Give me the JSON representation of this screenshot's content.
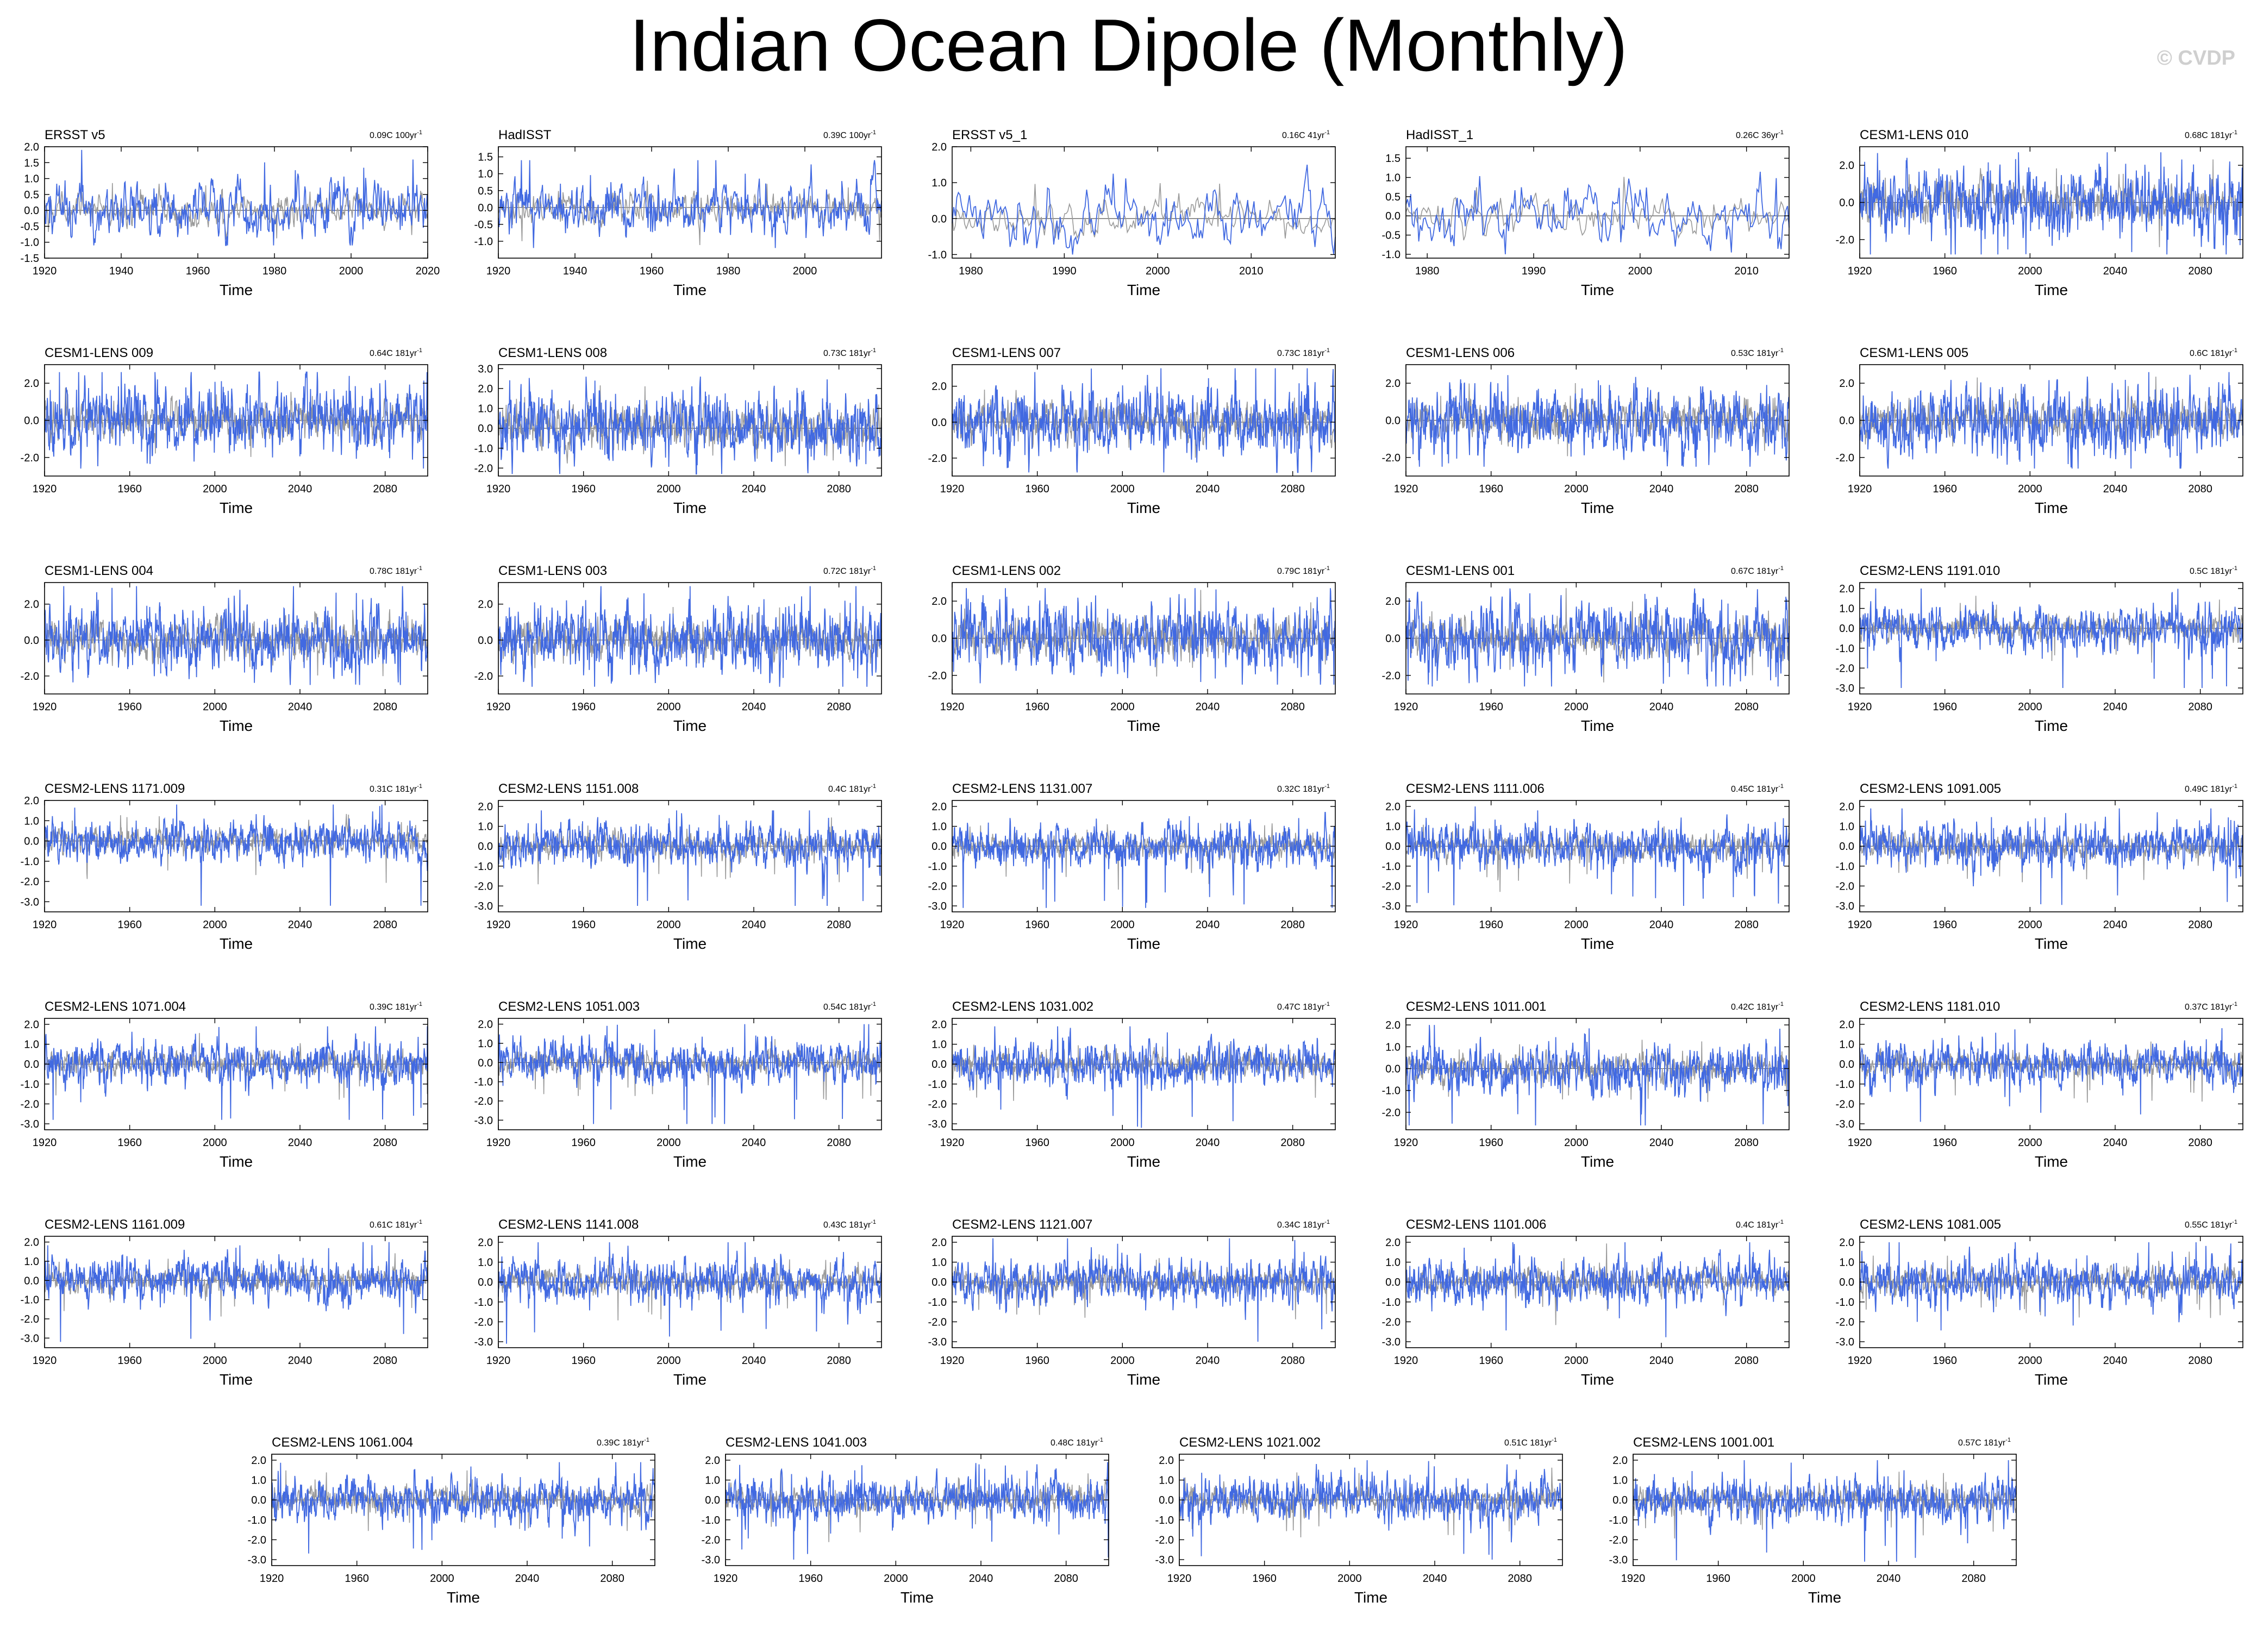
{
  "title": "Indian Ocean Dipole (Monthly)",
  "credit": "© CVDP",
  "colors": {
    "model_line": "#4169e1",
    "obs_line": "#9a9a9a",
    "frame": "#000000"
  },
  "chart_data": [
    {
      "type": "line",
      "panel_title": "ERSST v5",
      "trend": "0.09C 100yr",
      "xlabel": "Time",
      "xlim": [
        1920,
        2020
      ],
      "xticks": [
        "1920",
        "1940",
        "1960",
        "1980",
        "2000",
        "2020"
      ],
      "ylim": [
        -1.5,
        2.0
      ],
      "yticks": [
        "-1.5",
        "-1.0",
        "-0.5",
        "0.0",
        "0.5",
        "1.0",
        "1.5",
        "2.0"
      ],
      "series": [
        {
          "amplitude": 0.45,
          "min": -1.1,
          "max": 1.9
        }
      ]
    },
    {
      "type": "line",
      "panel_title": "HadISST",
      "trend": "0.39C 100yr",
      "xlabel": "Time",
      "xlim": [
        1920,
        2020
      ],
      "xticks": [
        "1920",
        "1940",
        "1960",
        "1980",
        "2000"
      ],
      "ylim": [
        -1.5,
        1.8
      ],
      "yticks": [
        "-1.0",
        "-0.5",
        "0.0",
        "0.5",
        "1.0",
        "1.5"
      ],
      "series": [
        {
          "amplitude": 0.4,
          "min": -1.2,
          "max": 1.4
        }
      ]
    },
    {
      "type": "line",
      "panel_title": "ERSST v5_1",
      "trend": "0.16C 41yr",
      "xlabel": "Time",
      "xlim": [
        1978,
        2019
      ],
      "xticks": [
        "1980",
        "1990",
        "2000",
        "2010"
      ],
      "ylim": [
        -1.1,
        2.0
      ],
      "yticks": [
        "-1.0",
        "0.0",
        "1.0",
        "2.0"
      ],
      "series": [
        {
          "amplitude": 0.45,
          "min": -1.0,
          "max": 1.5
        }
      ]
    },
    {
      "type": "line",
      "panel_title": "HadISST_1",
      "trend": "0.26C 36yr",
      "xlabel": "Time",
      "xlim": [
        1978,
        2014
      ],
      "xticks": [
        "1980",
        "1990",
        "2000",
        "2010"
      ],
      "ylim": [
        -1.1,
        1.8
      ],
      "yticks": [
        "-1.0",
        "-0.5",
        "0.0",
        "0.5",
        "1.0",
        "1.5"
      ],
      "series": [
        {
          "amplitude": 0.4,
          "min": -1.0,
          "max": 1.5
        }
      ]
    },
    {
      "type": "line",
      "panel_title": "CESM1-LENS 010",
      "trend": "0.68C 181yr",
      "xlabel": "Time",
      "xlim": [
        1920,
        2100
      ],
      "xticks": [
        "1920",
        "1960",
        "2000",
        "2040",
        "2080"
      ],
      "ylim": [
        -3.0,
        3.0
      ],
      "yticks": [
        "-2.0",
        "0.0",
        "2.0"
      ],
      "series": [
        {
          "amplitude": 0.9,
          "min": -2.8,
          "max": 2.7
        }
      ]
    },
    {
      "type": "line",
      "panel_title": "CESM1-LENS 009",
      "trend": "0.64C 181yr",
      "xlabel": "Time",
      "xlim": [
        1920,
        2100
      ],
      "xticks": [
        "1920",
        "1960",
        "2000",
        "2040",
        "2080"
      ],
      "ylim": [
        -3.0,
        3.0
      ],
      "yticks": [
        "-2.0",
        "0.0",
        "2.0"
      ],
      "series": [
        {
          "amplitude": 0.9,
          "min": -2.6,
          "max": 2.6
        }
      ]
    },
    {
      "type": "line",
      "panel_title": "CESM1-LENS 008",
      "trend": "0.73C 181yr",
      "xlabel": "Time",
      "xlim": [
        1920,
        2100
      ],
      "xticks": [
        "1920",
        "1960",
        "2000",
        "2040",
        "2080"
      ],
      "ylim": [
        -2.4,
        3.2
      ],
      "yticks": [
        "-2.0",
        "-1.0",
        "0.0",
        "1.0",
        "2.0",
        "3.0"
      ],
      "series": [
        {
          "amplitude": 0.9,
          "min": -2.3,
          "max": 2.6
        }
      ]
    },
    {
      "type": "line",
      "panel_title": "CESM1-LENS 007",
      "trend": "0.73C 181yr",
      "xlabel": "Time",
      "xlim": [
        1920,
        2100
      ],
      "xticks": [
        "1920",
        "1960",
        "2000",
        "2040",
        "2080"
      ],
      "ylim": [
        -3.0,
        3.2
      ],
      "yticks": [
        "-2.0",
        "0.0",
        "2.0"
      ],
      "series": [
        {
          "amplitude": 0.9,
          "min": -2.8,
          "max": 3.0
        }
      ]
    },
    {
      "type": "line",
      "panel_title": "CESM1-LENS 006",
      "trend": "0.53C 181yr",
      "xlabel": "Time",
      "xlim": [
        1920,
        2100
      ],
      "xticks": [
        "1920",
        "1960",
        "2000",
        "2040",
        "2080"
      ],
      "ylim": [
        -3.0,
        3.0
      ],
      "yticks": [
        "-2.0",
        "0.0",
        "2.0"
      ],
      "series": [
        {
          "amplitude": 0.9,
          "min": -2.5,
          "max": 2.6
        }
      ]
    },
    {
      "type": "line",
      "panel_title": "CESM1-LENS 005",
      "trend": "0.6C 181yr",
      "xlabel": "Time",
      "xlim": [
        1920,
        2100
      ],
      "xticks": [
        "1920",
        "1960",
        "2000",
        "2040",
        "2080"
      ],
      "ylim": [
        -3.0,
        3.0
      ],
      "yticks": [
        "-2.0",
        "0.0",
        "2.0"
      ],
      "series": [
        {
          "amplitude": 0.9,
          "min": -2.6,
          "max": 2.6
        }
      ]
    },
    {
      "type": "line",
      "panel_title": "CESM1-LENS 004",
      "trend": "0.78C 181yr",
      "xlabel": "Time",
      "xlim": [
        1920,
        2100
      ],
      "xticks": [
        "1920",
        "1960",
        "2000",
        "2040",
        "2080"
      ],
      "ylim": [
        -3.0,
        3.2
      ],
      "yticks": [
        "-2.0",
        "0.0",
        "2.0"
      ],
      "series": [
        {
          "amplitude": 0.9,
          "min": -2.5,
          "max": 3.0
        }
      ]
    },
    {
      "type": "line",
      "panel_title": "CESM1-LENS 003",
      "trend": "0.72C 181yr",
      "xlabel": "Time",
      "xlim": [
        1920,
        2100
      ],
      "xticks": [
        "1920",
        "1960",
        "2000",
        "2040",
        "2080"
      ],
      "ylim": [
        -3.0,
        3.2
      ],
      "yticks": [
        "-2.0",
        "0.0",
        "2.0"
      ],
      "series": [
        {
          "amplitude": 0.9,
          "min": -2.6,
          "max": 3.0
        }
      ]
    },
    {
      "type": "line",
      "panel_title": "CESM1-LENS 002",
      "trend": "0.79C 181yr",
      "xlabel": "Time",
      "xlim": [
        1920,
        2100
      ],
      "xticks": [
        "1920",
        "1960",
        "2000",
        "2040",
        "2080"
      ],
      "ylim": [
        -3.0,
        3.0
      ],
      "yticks": [
        "-2.0",
        "0.0",
        "2.0"
      ],
      "series": [
        {
          "amplitude": 0.9,
          "min": -2.5,
          "max": 2.7
        }
      ]
    },
    {
      "type": "line",
      "panel_title": "CESM1-LENS 001",
      "trend": "0.67C 181yr",
      "xlabel": "Time",
      "xlim": [
        1920,
        2100
      ],
      "xticks": [
        "1920",
        "1960",
        "2000",
        "2040",
        "2080"
      ],
      "ylim": [
        -3.0,
        3.0
      ],
      "yticks": [
        "-2.0",
        "0.0",
        "2.0"
      ],
      "series": [
        {
          "amplitude": 0.9,
          "min": -2.6,
          "max": 2.7
        }
      ]
    },
    {
      "type": "line",
      "panel_title": "CESM2-LENS 1191.010",
      "trend": "0.5C 181yr",
      "xlabel": "Time",
      "xlim": [
        1920,
        2100
      ],
      "xticks": [
        "1920",
        "1960",
        "2000",
        "2040",
        "2080"
      ],
      "ylim": [
        -3.3,
        2.3
      ],
      "yticks": [
        "-3.0",
        "-2.0",
        "-1.0",
        "0.0",
        "1.0",
        "2.0"
      ],
      "series": [
        {
          "amplitude": 0.55,
          "min": -3.0,
          "max": 2.0
        }
      ]
    },
    {
      "type": "line",
      "panel_title": "CESM2-LENS 1171.009",
      "trend": "0.31C 181yr",
      "xlabel": "Time",
      "xlim": [
        1920,
        2100
      ],
      "xticks": [
        "1920",
        "1960",
        "2000",
        "2040",
        "2080"
      ],
      "ylim": [
        -3.5,
        2.0
      ],
      "yticks": [
        "-3.0",
        "-2.0",
        "-1.0",
        "0.0",
        "1.0",
        "2.0"
      ],
      "series": [
        {
          "amplitude": 0.5,
          "min": -3.2,
          "max": 1.8
        }
      ]
    },
    {
      "type": "line",
      "panel_title": "CESM2-LENS 1151.008",
      "trend": "0.4C 181yr",
      "xlabel": "Time",
      "xlim": [
        1920,
        2100
      ],
      "xticks": [
        "1920",
        "1960",
        "2000",
        "2040",
        "2080"
      ],
      "ylim": [
        -3.3,
        2.3
      ],
      "yticks": [
        "-3.0",
        "-2.0",
        "-1.0",
        "0.0",
        "1.0",
        "2.0"
      ],
      "series": [
        {
          "amplitude": 0.55,
          "min": -3.0,
          "max": 1.8
        }
      ]
    },
    {
      "type": "line",
      "panel_title": "CESM2-LENS 1131.007",
      "trend": "0.32C 181yr",
      "xlabel": "Time",
      "xlim": [
        1920,
        2100
      ],
      "xticks": [
        "1920",
        "1960",
        "2000",
        "2040",
        "2080"
      ],
      "ylim": [
        -3.3,
        2.3
      ],
      "yticks": [
        "-3.0",
        "-2.0",
        "-1.0",
        "0.0",
        "1.0",
        "2.0"
      ],
      "series": [
        {
          "amplitude": 0.55,
          "min": -3.1,
          "max": 1.7
        }
      ]
    },
    {
      "type": "line",
      "panel_title": "CESM2-LENS 1111.006",
      "trend": "0.45C 181yr",
      "xlabel": "Time",
      "xlim": [
        1920,
        2100
      ],
      "xticks": [
        "1920",
        "1960",
        "2000",
        "2040",
        "2080"
      ],
      "ylim": [
        -3.3,
        2.3
      ],
      "yticks": [
        "-3.0",
        "-2.0",
        "-1.0",
        "0.0",
        "1.0",
        "2.0"
      ],
      "series": [
        {
          "amplitude": 0.55,
          "min": -3.0,
          "max": 2.0
        }
      ]
    },
    {
      "type": "line",
      "panel_title": "CESM2-LENS 1091.005",
      "trend": "0.49C 181yr",
      "xlabel": "Time",
      "xlim": [
        1920,
        2100
      ],
      "xticks": [
        "1920",
        "1960",
        "2000",
        "2040",
        "2080"
      ],
      "ylim": [
        -3.3,
        2.3
      ],
      "yticks": [
        "-3.0",
        "-2.0",
        "-1.0",
        "0.0",
        "1.0",
        "2.0"
      ],
      "series": [
        {
          "amplitude": 0.55,
          "min": -3.0,
          "max": 1.9
        }
      ]
    },
    {
      "type": "line",
      "panel_title": "CESM2-LENS 1071.004",
      "trend": "0.39C 181yr",
      "xlabel": "Time",
      "xlim": [
        1920,
        2100
      ],
      "xticks": [
        "1920",
        "1960",
        "2000",
        "2040",
        "2080"
      ],
      "ylim": [
        -3.3,
        2.3
      ],
      "yticks": [
        "-3.0",
        "-2.0",
        "-1.0",
        "0.0",
        "1.0",
        "2.0"
      ],
      "series": [
        {
          "amplitude": 0.55,
          "min": -2.8,
          "max": 1.9
        }
      ]
    },
    {
      "type": "line",
      "panel_title": "CESM2-LENS 1051.003",
      "trend": "0.54C 181yr",
      "xlabel": "Time",
      "xlim": [
        1920,
        2100
      ],
      "xticks": [
        "1920",
        "1960",
        "2000",
        "2040",
        "2080"
      ],
      "ylim": [
        -3.5,
        2.3
      ],
      "yticks": [
        "-3.0",
        "-2.0",
        "-1.0",
        "0.0",
        "1.0",
        "2.0"
      ],
      "series": [
        {
          "amplitude": 0.55,
          "min": -3.2,
          "max": 2.0
        }
      ]
    },
    {
      "type": "line",
      "panel_title": "CESM2-LENS 1031.002",
      "trend": "0.47C 181yr",
      "xlabel": "Time",
      "xlim": [
        1920,
        2100
      ],
      "xticks": [
        "1920",
        "1960",
        "2000",
        "2040",
        "2080"
      ],
      "ylim": [
        -3.3,
        2.3
      ],
      "yticks": [
        "-3.0",
        "-2.0",
        "-1.0",
        "0.0",
        "1.0",
        "2.0"
      ],
      "series": [
        {
          "amplitude": 0.55,
          "min": -3.2,
          "max": 1.9
        }
      ]
    },
    {
      "type": "line",
      "panel_title": "CESM2-LENS 1011.001",
      "trend": "0.42C 181yr",
      "xlabel": "Time",
      "xlim": [
        1920,
        2100
      ],
      "xticks": [
        "1920",
        "1960",
        "2000",
        "2040",
        "2080"
      ],
      "ylim": [
        -2.8,
        2.3
      ],
      "yticks": [
        "-2.0",
        "-1.0",
        "0.0",
        "1.0",
        "2.0"
      ],
      "series": [
        {
          "amplitude": 0.55,
          "min": -2.6,
          "max": 2.0
        }
      ]
    },
    {
      "type": "line",
      "panel_title": "CESM2-LENS 1181.010",
      "trend": "0.37C 181yr",
      "xlabel": "Time",
      "xlim": [
        1920,
        2100
      ],
      "xticks": [
        "1920",
        "1960",
        "2000",
        "2040",
        "2080"
      ],
      "ylim": [
        -3.3,
        2.3
      ],
      "yticks": [
        "-3.0",
        "-2.0",
        "-1.0",
        "0.0",
        "1.0",
        "2.0"
      ],
      "series": [
        {
          "amplitude": 0.55,
          "min": -2.9,
          "max": 2.0
        }
      ]
    },
    {
      "type": "line",
      "panel_title": "CESM2-LENS 1161.009",
      "trend": "0.61C 181yr",
      "xlabel": "Time",
      "xlim": [
        1920,
        2100
      ],
      "xticks": [
        "1920",
        "1960",
        "2000",
        "2040",
        "2080"
      ],
      "ylim": [
        -3.5,
        2.3
      ],
      "yticks": [
        "-3.0",
        "-2.0",
        "-1.0",
        "0.0",
        "1.0",
        "2.0"
      ],
      "series": [
        {
          "amplitude": 0.55,
          "min": -3.2,
          "max": 2.0
        }
      ]
    },
    {
      "type": "line",
      "panel_title": "CESM2-LENS 1141.008",
      "trend": "0.43C 181yr",
      "xlabel": "Time",
      "xlim": [
        1920,
        2100
      ],
      "xticks": [
        "1920",
        "1960",
        "2000",
        "2040",
        "2080"
      ],
      "ylim": [
        -3.3,
        2.3
      ],
      "yticks": [
        "-3.0",
        "-2.0",
        "-1.0",
        "0.0",
        "1.0",
        "2.0"
      ],
      "series": [
        {
          "amplitude": 0.55,
          "min": -3.1,
          "max": 2.0
        }
      ]
    },
    {
      "type": "line",
      "panel_title": "CESM2-LENS 1121.007",
      "trend": "0.34C 181yr",
      "xlabel": "Time",
      "xlim": [
        1920,
        2100
      ],
      "xticks": [
        "1920",
        "1960",
        "2000",
        "2040",
        "2080"
      ],
      "ylim": [
        -3.3,
        2.3
      ],
      "yticks": [
        "-3.0",
        "-2.0",
        "-1.0",
        "0.0",
        "1.0",
        "2.0"
      ],
      "series": [
        {
          "amplitude": 0.55,
          "min": -3.0,
          "max": 2.2
        }
      ]
    },
    {
      "type": "line",
      "panel_title": "CESM2-LENS 1101.006",
      "trend": "0.4C 181yr",
      "xlabel": "Time",
      "xlim": [
        1920,
        2100
      ],
      "xticks": [
        "1920",
        "1960",
        "2000",
        "2040",
        "2080"
      ],
      "ylim": [
        -3.3,
        2.3
      ],
      "yticks": [
        "-3.0",
        "-2.0",
        "-1.0",
        "0.0",
        "1.0",
        "2.0"
      ],
      "series": [
        {
          "amplitude": 0.55,
          "min": -3.1,
          "max": 2.0
        }
      ]
    },
    {
      "type": "line",
      "panel_title": "CESM2-LENS 1081.005",
      "trend": "0.55C 181yr",
      "xlabel": "Time",
      "xlim": [
        1920,
        2100
      ],
      "xticks": [
        "1920",
        "1960",
        "2000",
        "2040",
        "2080"
      ],
      "ylim": [
        -3.3,
        2.3
      ],
      "yticks": [
        "-3.0",
        "-2.0",
        "-1.0",
        "0.0",
        "1.0",
        "2.0"
      ],
      "series": [
        {
          "amplitude": 0.55,
          "min": -2.8,
          "max": 2.0
        }
      ]
    },
    {
      "type": "line",
      "panel_title": "CESM2-LENS 1061.004",
      "trend": "0.39C 181yr",
      "xlabel": "Time",
      "xlim": [
        1920,
        2100
      ],
      "xticks": [
        "1920",
        "1960",
        "2000",
        "2040",
        "2080"
      ],
      "ylim": [
        -3.3,
        2.3
      ],
      "yticks": [
        "-3.0",
        "-2.0",
        "-1.0",
        "0.0",
        "1.0",
        "2.0"
      ],
      "series": [
        {
          "amplitude": 0.55,
          "min": -3.0,
          "max": 1.9
        }
      ]
    },
    {
      "type": "line",
      "panel_title": "CESM2-LENS 1041.003",
      "trend": "0.48C 181yr",
      "xlabel": "Time",
      "xlim": [
        1920,
        2100
      ],
      "xticks": [
        "1920",
        "1960",
        "2000",
        "2040",
        "2080"
      ],
      "ylim": [
        -3.3,
        2.3
      ],
      "yticks": [
        "-3.0",
        "-2.0",
        "-1.0",
        "0.0",
        "1.0",
        "2.0"
      ],
      "series": [
        {
          "amplitude": 0.55,
          "min": -3.0,
          "max": 1.9
        }
      ]
    },
    {
      "type": "line",
      "panel_title": "CESM2-LENS 1021.002",
      "trend": "0.51C 181yr",
      "xlabel": "Time",
      "xlim": [
        1920,
        2100
      ],
      "xticks": [
        "1920",
        "1960",
        "2000",
        "2040",
        "2080"
      ],
      "ylim": [
        -3.3,
        2.3
      ],
      "yticks": [
        "-3.0",
        "-2.0",
        "-1.0",
        "0.0",
        "1.0",
        "2.0"
      ],
      "series": [
        {
          "amplitude": 0.55,
          "min": -3.0,
          "max": 2.0
        }
      ]
    },
    {
      "type": "line",
      "panel_title": "CESM2-LENS 1001.001",
      "trend": "0.57C 181yr",
      "xlabel": "Time",
      "xlim": [
        1920,
        2100
      ],
      "xticks": [
        "1920",
        "1960",
        "2000",
        "2040",
        "2080"
      ],
      "ylim": [
        -3.3,
        2.3
      ],
      "yticks": [
        "-3.0",
        "-2.0",
        "-1.0",
        "0.0",
        "1.0",
        "2.0"
      ],
      "series": [
        {
          "amplitude": 0.55,
          "min": -3.1,
          "max": 2.0
        }
      ]
    }
  ]
}
